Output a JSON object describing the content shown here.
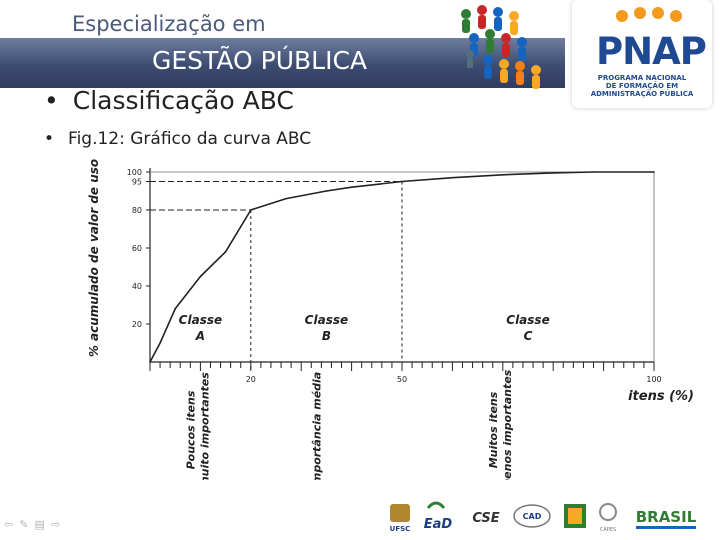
{
  "header": {
    "top_line": "Especialização em",
    "title": "GESTÃO PÚBLICA"
  },
  "logo": {
    "name": "PNAP",
    "subtitle_lines": [
      "PROGRAMA NACIONAL",
      "DE FORMAÇÃO EM",
      "ADMINISTRAÇÃO PÚBLICA"
    ]
  },
  "bullets": [
    {
      "text": "Classificação ABC"
    },
    {
      "text": "Fig.12: Gráfico da curva ABC"
    }
  ],
  "chart_data": {
    "type": "line",
    "ylabel": "% acumulado de valor de uso",
    "xlabel": "itens (%)",
    "xlim": [
      0,
      100
    ],
    "ylim": [
      0,
      100
    ],
    "y_ticks": [
      "100",
      "95",
      "80",
      "60",
      "40",
      "20"
    ],
    "x_ticks": [
      "20",
      "50",
      "100"
    ],
    "x": [
      0,
      2,
      5,
      10,
      15,
      20,
      27,
      35,
      40,
      50,
      60,
      70,
      80,
      88,
      100
    ],
    "y": [
      0,
      10,
      28,
      45,
      58,
      80,
      86,
      90,
      92,
      95,
      97,
      98.5,
      99.5,
      100,
      100
    ],
    "guides": [
      {
        "x": 20,
        "y": 80
      },
      {
        "x": 50,
        "y": 95
      }
    ],
    "classes": [
      {
        "label": "Classe",
        "sub": "A"
      },
      {
        "label": "Classe",
        "sub": "B"
      },
      {
        "label": "Classe",
        "sub": "C"
      }
    ],
    "annotations": [
      {
        "line1": "Poucos itens",
        "line2": "muito importantes"
      },
      {
        "line1": "Importância média",
        "line2": ""
      },
      {
        "line1": "Muitos itens",
        "line2": "menos importantes"
      }
    ]
  },
  "colors": {
    "header_bar": "#3c4c70",
    "logo_blue": "#1f4a93",
    "logo_orange": "#f39a1e"
  },
  "footer": {
    "logos": [
      "UFSC",
      "EaD",
      "CSE",
      "CAD",
      "CAPES",
      "BRASIL"
    ]
  }
}
